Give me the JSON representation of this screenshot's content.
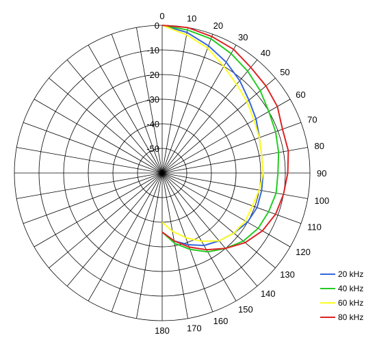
{
  "chart_data": {
    "type": "line",
    "subtype": "polar",
    "angle_ticks": [
      0,
      10,
      20,
      30,
      40,
      50,
      60,
      70,
      80,
      90,
      100,
      110,
      120,
      130,
      140,
      150,
      160,
      170,
      180
    ],
    "radial_ticks": [
      0,
      -10,
      -20,
      -30,
      -40,
      -50
    ],
    "rlim": [
      -60,
      0
    ],
    "grid": true,
    "legend_position": "bottom-right",
    "series": [
      {
        "name": "20 kHz",
        "color": "#3366dd",
        "angles": [
          0,
          10,
          20,
          30,
          40,
          50,
          60,
          70,
          80,
          90,
          100,
          110,
          120,
          130,
          140,
          150,
          160,
          170,
          180
        ],
        "values": [
          0,
          -2,
          -5,
          -8,
          -11,
          -14,
          -16,
          -18,
          -19,
          -19,
          -19,
          -19,
          -20,
          -22,
          -24,
          -26,
          -29,
          -32,
          -36
        ]
      },
      {
        "name": "40 kHz",
        "color": "#22cc22",
        "angles": [
          0,
          10,
          20,
          30,
          40,
          50,
          60,
          70,
          80,
          90,
          100,
          110,
          120,
          130,
          140,
          150,
          160,
          170,
          180
        ],
        "values": [
          0,
          -1,
          -2,
          -4,
          -6,
          -8,
          -10,
          -11,
          -12,
          -13,
          -13,
          -14,
          -15,
          -17,
          -20,
          -23,
          -27,
          -31,
          -36
        ]
      },
      {
        "name": "60 kHz",
        "color": "#ffff22",
        "angles": [
          0,
          10,
          20,
          30,
          40,
          50,
          60,
          70,
          80,
          90,
          100,
          110,
          120,
          130,
          140,
          150,
          160,
          170,
          180
        ],
        "values": [
          0,
          -3,
          -6,
          -10,
          -13,
          -15,
          -17,
          -18,
          -19,
          -19,
          -20,
          -21,
          -21,
          -22,
          -24,
          -28,
          -32,
          -36,
          -40
        ]
      },
      {
        "name": "80 kHz",
        "color": "#dd2222",
        "angles": [
          0,
          10,
          20,
          30,
          40,
          50,
          60,
          70,
          80,
          90,
          100,
          110,
          120,
          130,
          140,
          150,
          160,
          170,
          180
        ],
        "values": [
          0,
          0,
          -1,
          -2,
          -4,
          -5,
          -6,
          -8,
          -8,
          -9,
          -10,
          -11,
          -13,
          -16,
          -20,
          -24,
          -28,
          -32,
          -36
        ]
      }
    ]
  }
}
